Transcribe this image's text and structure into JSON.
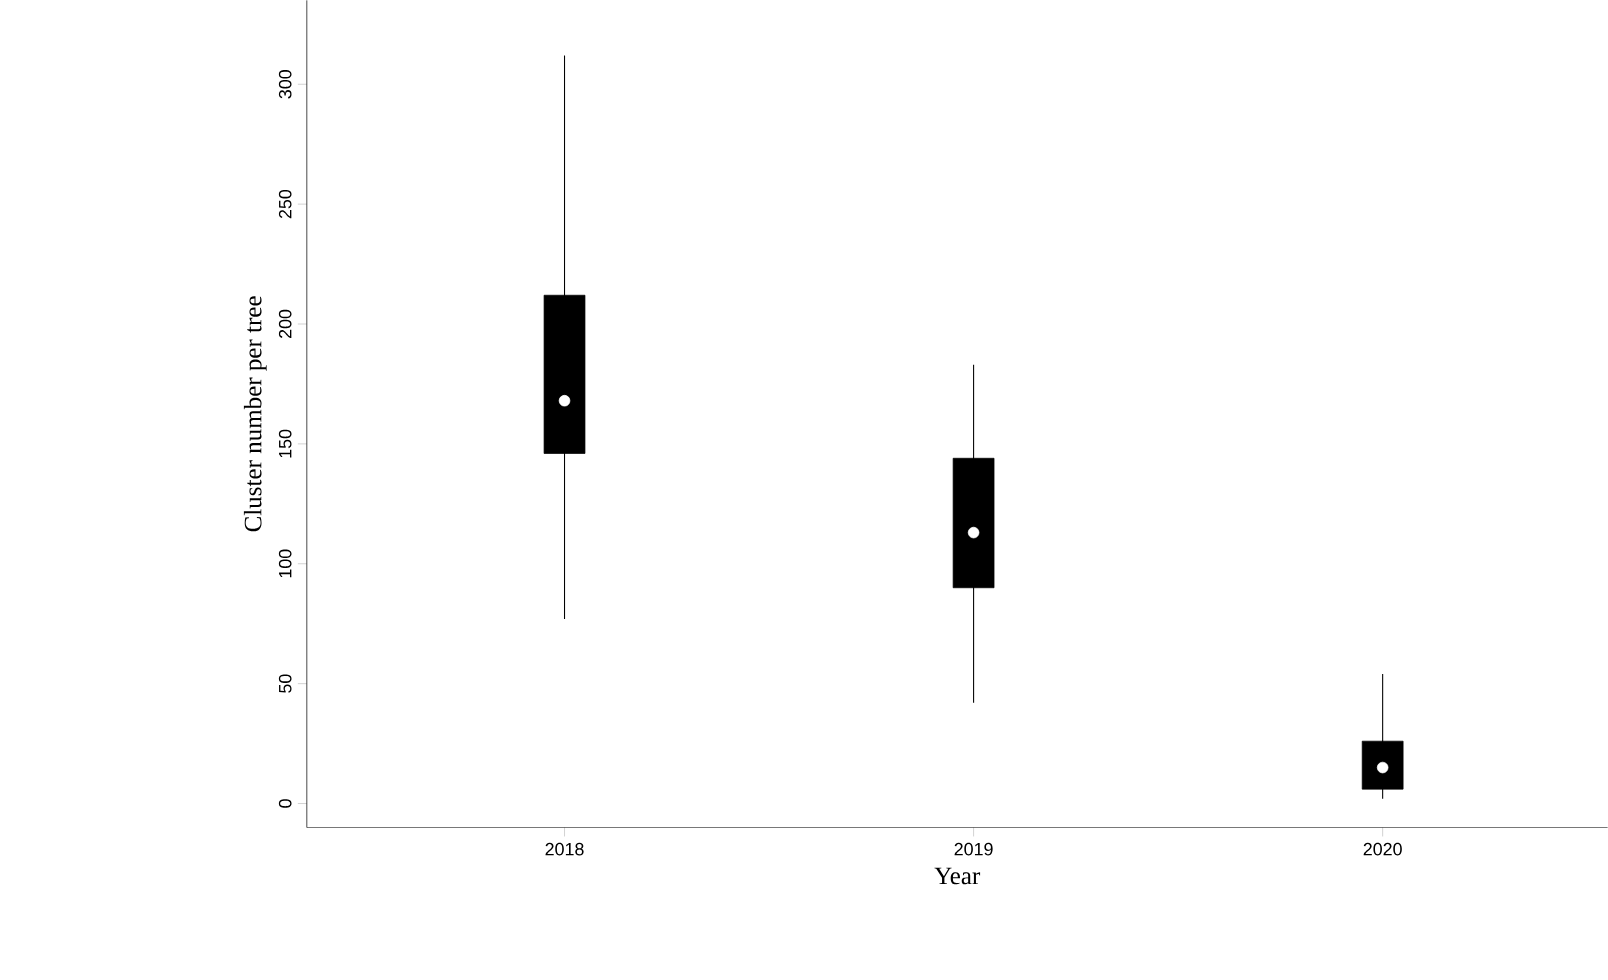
{
  "chart_data": {
    "type": "box",
    "xlabel": "Year",
    "ylabel": "Cluster number per tree",
    "categories": [
      "2018",
      "2019",
      "2020"
    ],
    "boxes": [
      {
        "low": 77,
        "q1": 146,
        "median": 168,
        "q3": 212,
        "high": 312
      },
      {
        "low": 42,
        "q1": 90,
        "median": 113,
        "q3": 144,
        "high": 183
      },
      {
        "low": 2,
        "q1": 6,
        "median": 15,
        "q3": 26,
        "high": 54
      }
    ],
    "color": "#000000",
    "ylim": [
      -10,
      335
    ],
    "yticks": [
      0,
      50,
      100,
      150,
      200,
      250,
      300
    ]
  }
}
